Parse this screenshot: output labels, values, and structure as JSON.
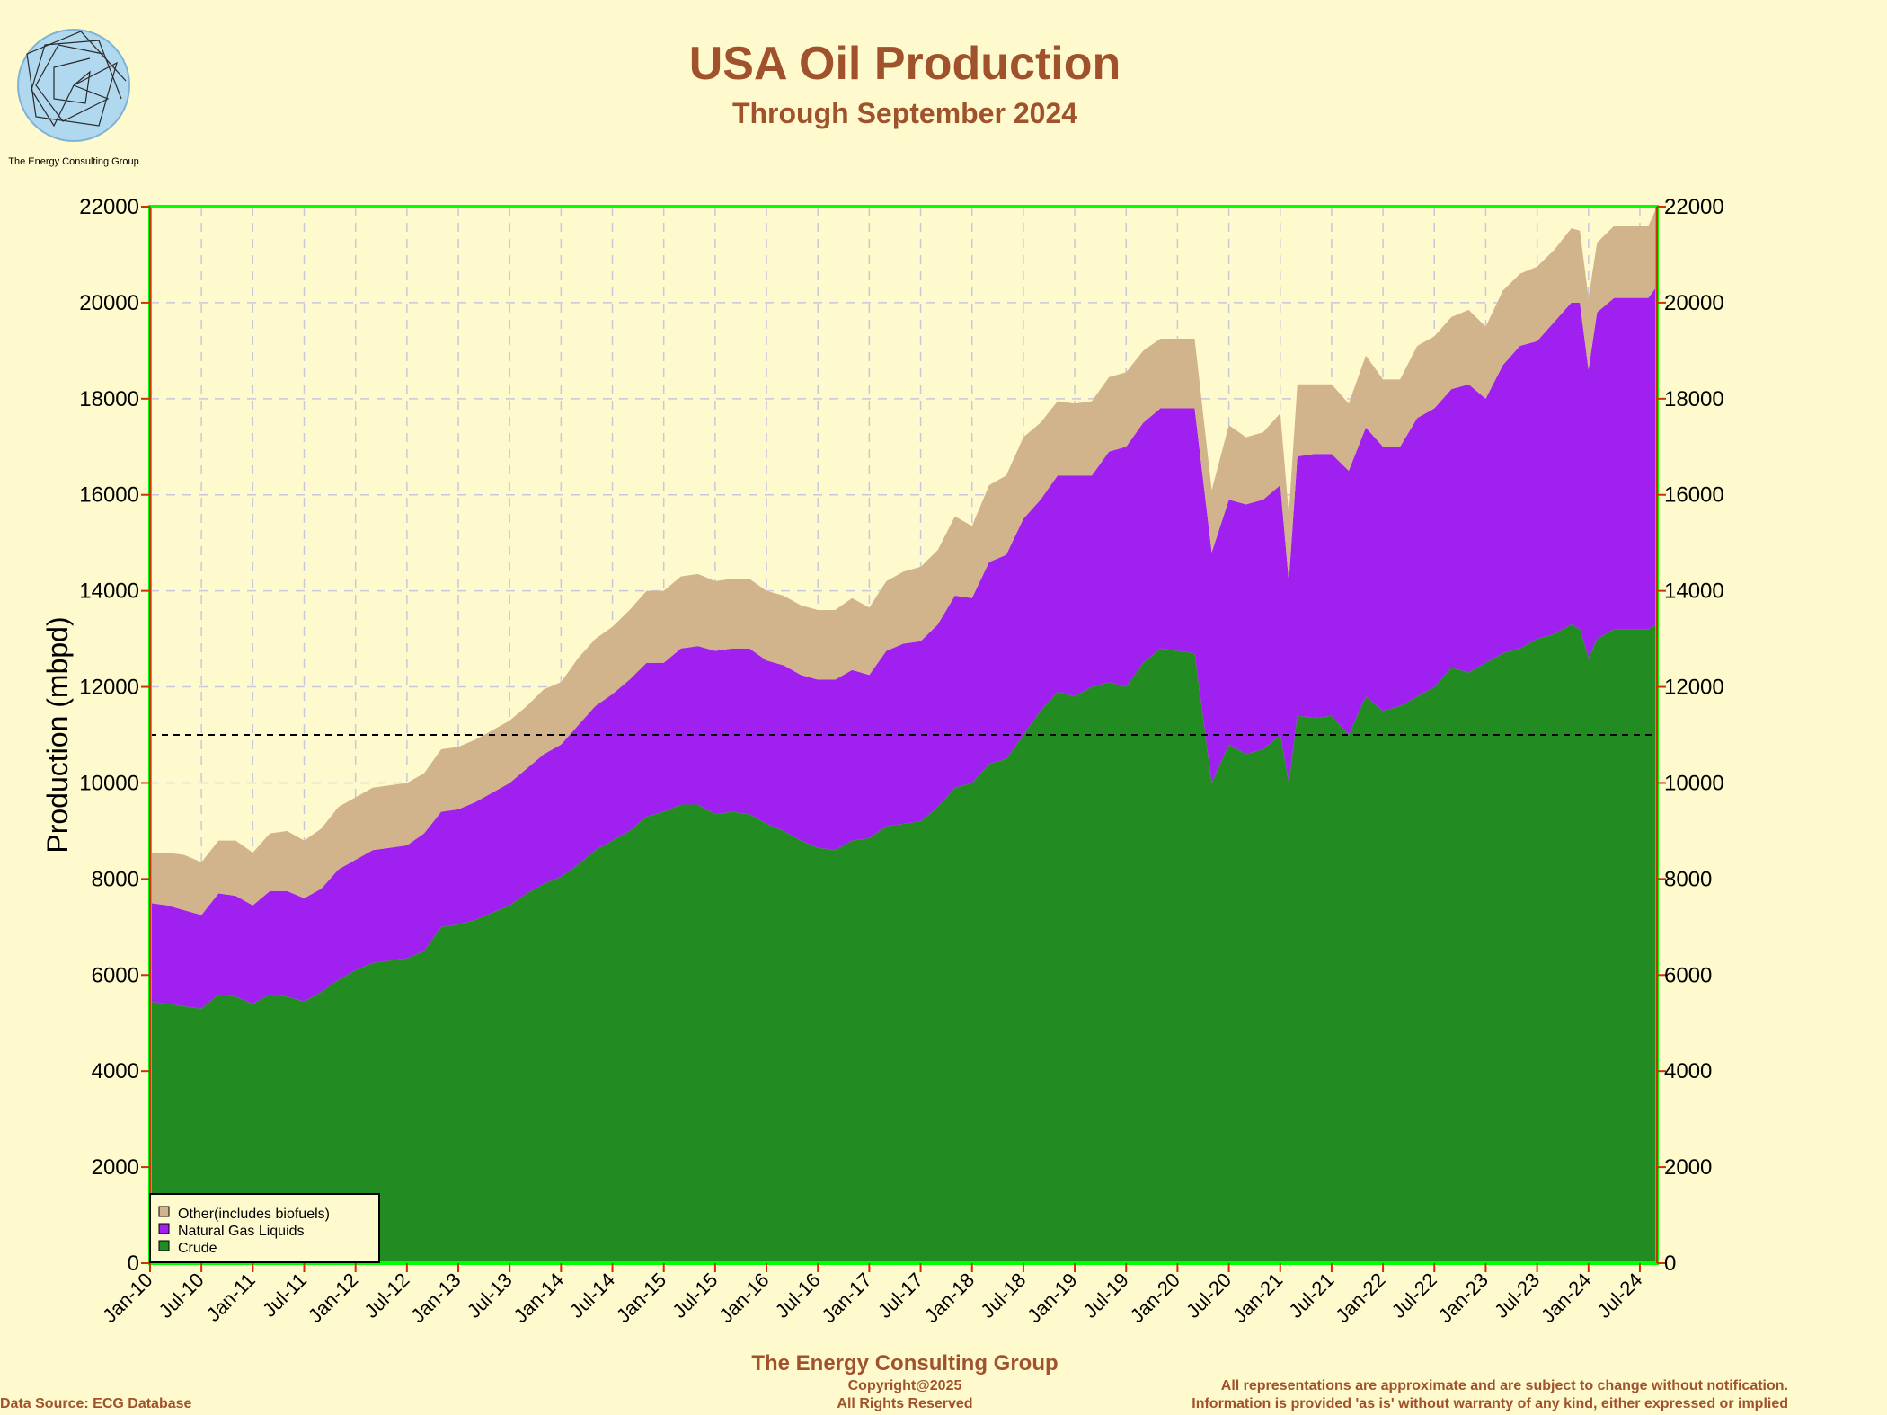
{
  "header": {
    "title": "USA Oil Production",
    "subtitle": "Through September 2024",
    "logo_text": "The Energy Consulting Group"
  },
  "footer": {
    "company": "The Energy Consulting Group",
    "copyright": "Copyright@2025",
    "rights": "All Rights Reserved",
    "source": "Data Source: ECG Database",
    "disclaimer1": "All representations are approximate and are subject to change without notification.",
    "disclaimer2": "Information is provided 'as is' without warranty of any kind, either expressed or implied"
  },
  "colors": {
    "crude": "#228b22",
    "ngl": "#a020f0",
    "other": "#d2b48c",
    "background": "#fffacd",
    "frame": "#00ff00",
    "text_accent": "#a0522d"
  },
  "chart_data": {
    "type": "area",
    "stacked": true,
    "title": "USA Oil Production",
    "subtitle": "Through September 2024",
    "ylabel": "Production (mbpd)",
    "xlabel": "",
    "ylim": [
      0,
      22000
    ],
    "yticks": [
      0,
      2000,
      4000,
      6000,
      8000,
      10000,
      12000,
      14000,
      16000,
      18000,
      20000,
      22000
    ],
    "xlim": [
      "Jan-10",
      "Sep-24"
    ],
    "xticks": [
      "Jan-10",
      "Jul-10",
      "Jan-11",
      "Jul-11",
      "Jan-12",
      "Jul-12",
      "Jan-13",
      "Jul-13",
      "Jan-14",
      "Jul-14",
      "Jan-15",
      "Jul-15",
      "Jan-16",
      "Jul-16",
      "Jan-17",
      "Jul-17",
      "Jan-18",
      "Jul-18",
      "Jan-19",
      "Jul-19",
      "Jan-20",
      "Jul-20",
      "Jan-21",
      "Jul-21",
      "Jan-22",
      "Jul-22",
      "Jan-23",
      "Jul-23",
      "Jan-24",
      "Jul-24"
    ],
    "grid": true,
    "reference_line": 11000,
    "legend_position": "bottom-left",
    "dates": [
      "Jan-10",
      "Mar-10",
      "May-10",
      "Jul-10",
      "Sep-10",
      "Nov-10",
      "Jan-11",
      "Mar-11",
      "May-11",
      "Jul-11",
      "Sep-11",
      "Nov-11",
      "Jan-12",
      "Mar-12",
      "May-12",
      "Jul-12",
      "Sep-12",
      "Nov-12",
      "Jan-13",
      "Mar-13",
      "May-13",
      "Jul-13",
      "Sep-13",
      "Nov-13",
      "Jan-14",
      "Mar-14",
      "May-14",
      "Jul-14",
      "Sep-14",
      "Nov-14",
      "Jan-15",
      "Mar-15",
      "May-15",
      "Jul-15",
      "Sep-15",
      "Nov-15",
      "Jan-16",
      "Mar-16",
      "May-16",
      "Jul-16",
      "Sep-16",
      "Nov-16",
      "Jan-17",
      "Mar-17",
      "May-17",
      "Jul-17",
      "Sep-17",
      "Nov-17",
      "Jan-18",
      "Mar-18",
      "May-18",
      "Jul-18",
      "Sep-18",
      "Nov-18",
      "Jan-19",
      "Mar-19",
      "May-19",
      "Jul-19",
      "Sep-19",
      "Nov-19",
      "Jan-20",
      "Mar-20",
      "May-20",
      "Jul-20",
      "Sep-20",
      "Nov-20",
      "Jan-21",
      "Feb-21",
      "Mar-21",
      "May-21",
      "Jul-21",
      "Sep-21",
      "Nov-21",
      "Jan-22",
      "Mar-22",
      "May-22",
      "Jul-22",
      "Sep-22",
      "Nov-22",
      "Jan-23",
      "Mar-23",
      "May-23",
      "Jul-23",
      "Sep-23",
      "Nov-23",
      "Dec-23",
      "Jan-24",
      "Feb-24",
      "Apr-24",
      "Jun-24",
      "Aug-24",
      "Sep-24"
    ],
    "series": [
      {
        "name": "Crude",
        "values": [
          5450,
          5400,
          5350,
          5300,
          5600,
          5550,
          5400,
          5600,
          5550,
          5450,
          5650,
          5900,
          6100,
          6250,
          6300,
          6350,
          6500,
          7000,
          7050,
          7150,
          7300,
          7450,
          7700,
          7900,
          8050,
          8300,
          8600,
          8800,
          9000,
          9300,
          9400,
          9550,
          9550,
          9350,
          9400,
          9350,
          9150,
          9000,
          8800,
          8650,
          8600,
          8800,
          8850,
          9100,
          9150,
          9200,
          9500,
          9900,
          10000,
          10400,
          10500,
          11000,
          11500,
          11900,
          11800,
          12000,
          12100,
          12000,
          12500,
          12800,
          12750,
          12700,
          10000,
          10800,
          10600,
          10700,
          11000,
          10000,
          11400,
          11350,
          11400,
          11000,
          11800,
          11500,
          11600,
          11800,
          12000,
          12400,
          12300,
          12500,
          12700,
          12800,
          13000,
          13100,
          13300,
          13200,
          12600,
          13000,
          13200,
          13200,
          13200,
          13300
        ]
      },
      {
        "name": "Natural Gas Liquids",
        "values": [
          2050,
          2050,
          2000,
          1950,
          2100,
          2100,
          2050,
          2150,
          2200,
          2150,
          2150,
          2300,
          2300,
          2350,
          2350,
          2350,
          2450,
          2400,
          2400,
          2450,
          2500,
          2550,
          2600,
          2700,
          2750,
          2900,
          3000,
          3050,
          3150,
          3200,
          3100,
          3250,
          3300,
          3400,
          3400,
          3450,
          3400,
          3450,
          3450,
          3500,
          3550,
          3550,
          3400,
          3650,
          3750,
          3750,
          3800,
          4000,
          3850,
          4200,
          4250,
          4500,
          4400,
          4500,
          4600,
          4400,
          4800,
          5000,
          5000,
          5000,
          5050,
          5100,
          4800,
          5100,
          5200,
          5200,
          5200,
          4200,
          5400,
          5500,
          5450,
          5500,
          5600,
          5500,
          5400,
          5800,
          5800,
          5800,
          6000,
          5500,
          6000,
          6300,
          6200,
          6500,
          6700,
          6800,
          6000,
          6800,
          6900,
          6900,
          6900,
          7050
        ]
      },
      {
        "name": "Other(includes biofuels)",
        "values": [
          1050,
          1100,
          1150,
          1100,
          1100,
          1150,
          1100,
          1200,
          1250,
          1200,
          1250,
          1300,
          1300,
          1300,
          1300,
          1300,
          1250,
          1300,
          1300,
          1300,
          1300,
          1300,
          1300,
          1350,
          1300,
          1400,
          1400,
          1400,
          1450,
          1500,
          1500,
          1500,
          1500,
          1450,
          1450,
          1450,
          1450,
          1450,
          1450,
          1450,
          1450,
          1500,
          1400,
          1450,
          1500,
          1550,
          1550,
          1650,
          1500,
          1600,
          1650,
          1700,
          1600,
          1550,
          1500,
          1550,
          1550,
          1550,
          1500,
          1450,
          1450,
          1450,
          1300,
          1550,
          1400,
          1400,
          1500,
          1400,
          1500,
          1450,
          1450,
          1400,
          1500,
          1400,
          1400,
          1500,
          1500,
          1500,
          1550,
          1500,
          1550,
          1500,
          1550,
          1500,
          1550,
          1500,
          1500,
          1450,
          1500,
          1500,
          1500,
          1650
        ]
      }
    ]
  }
}
